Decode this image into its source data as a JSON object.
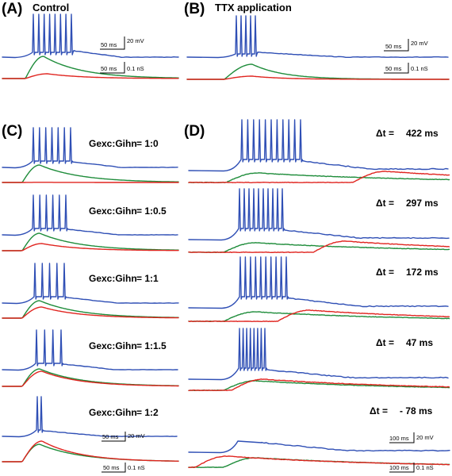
{
  "panels": {
    "A": {
      "label": "(A)",
      "title": "Control"
    },
    "B": {
      "label": "(B)",
      "title": "TTX application"
    },
    "C": {
      "label": "(C)"
    },
    "D": {
      "label": "(D)"
    }
  },
  "colors": {
    "voltage": "#2f4fb5",
    "excitatory": "#1e8c3a",
    "inhibitory": "#e0241f"
  },
  "ratio_prefix": "Gexc:Gihn",
  "ratio_rows": [
    {
      "value": "= 1:0"
    },
    {
      "value": " = 1:0.5"
    },
    {
      "value": " = 1:1"
    },
    {
      "value": " = 1:1.5"
    },
    {
      "value": " = 1:2"
    }
  ],
  "dt_rows": [
    {
      "label": "Δt = ",
      "value": "422 ms"
    },
    {
      "label": "Δt = ",
      "value": "297 ms"
    },
    {
      "label": "Δt = ",
      "value": "172 ms"
    },
    {
      "label": "Δt = ",
      "value": "47 ms"
    },
    {
      "label": "Δt = ",
      "value": "- 78 ms"
    }
  ],
  "scale_bars": {
    "A_voltage": {
      "time": "50 ms",
      "amp": "20 mV"
    },
    "A_conductance": {
      "time": "50 ms",
      "amp": "0.1 nS"
    },
    "B_voltage": {
      "time": "50 ms",
      "amp": "20 mV"
    },
    "B_conductance": {
      "time": "50 ms",
      "amp": "0.1 nS"
    },
    "C_voltage": {
      "time": "50 ms",
      "amp": "20 mV"
    },
    "C_conductance": {
      "time": "50 ms",
      "amp": "0.1 nS"
    },
    "D_voltage": {
      "time": "100 ms",
      "amp": "20 mV"
    },
    "D_conductance": {
      "time": "100 ms",
      "amp": "0.1 nS"
    }
  },
  "spike_counts": {
    "A": 8,
    "B": 5,
    "C": [
      7,
      6,
      5,
      4,
      2
    ],
    "D": [
      11,
      10,
      10,
      8,
      0
    ]
  }
}
